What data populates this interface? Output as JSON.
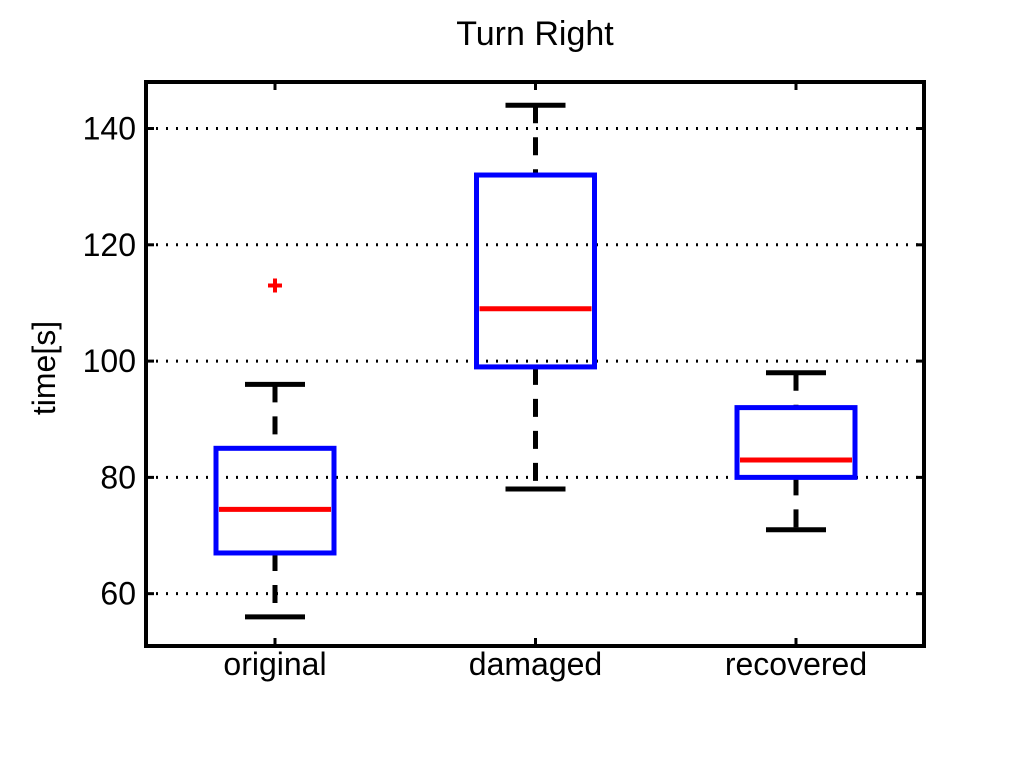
{
  "chart_data": {
    "type": "boxplot",
    "title": "Turn Right",
    "xlabel": "",
    "ylabel": "time[s]",
    "ylim": [
      51,
      148
    ],
    "yticks": [
      60,
      80,
      100,
      120,
      140
    ],
    "grid": "y-dotted",
    "categories": [
      "original",
      "damaged",
      "recovered"
    ],
    "boxes": [
      {
        "category": "original",
        "whisker_low": 56,
        "q1": 67,
        "median": 74.5,
        "q3": 85,
        "whisker_high": 96,
        "outliers": [
          113
        ]
      },
      {
        "category": "damaged",
        "whisker_low": 78,
        "q1": 99,
        "median": 109,
        "q3": 132,
        "whisker_high": 144,
        "outliers": []
      },
      {
        "category": "recovered",
        "whisker_low": 71,
        "q1": 80,
        "median": 83,
        "q3": 92,
        "whisker_high": 98,
        "outliers": []
      }
    ],
    "colors": {
      "box": "#0000ff",
      "median": "#ff0000",
      "whisker": "#000000",
      "outlier": "#ff0000",
      "grid": "#000000"
    }
  }
}
